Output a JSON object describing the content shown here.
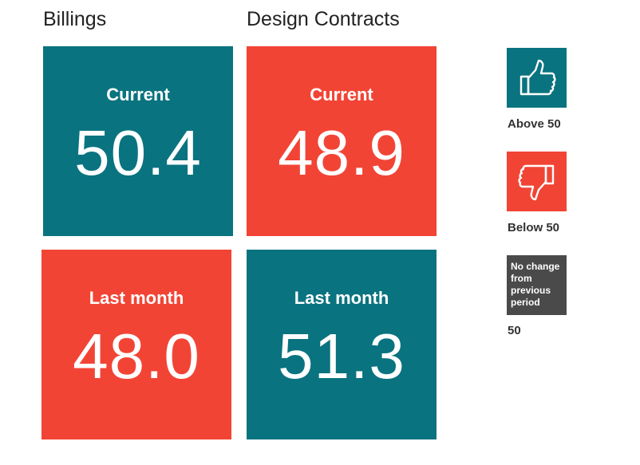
{
  "colors": {
    "above": "#0a7380",
    "below": "#f24435",
    "neutral": "#4a4a4a"
  },
  "columns": [
    {
      "title": "Billings"
    },
    {
      "title": "Design Contracts"
    }
  ],
  "tiles": {
    "billings_current": {
      "label": "Current",
      "value": "50.4",
      "status": "above"
    },
    "design_current": {
      "label": "Current",
      "value": "48.9",
      "status": "below"
    },
    "billings_last": {
      "label": "Last month",
      "value": "48.0",
      "status": "below"
    },
    "design_last": {
      "label": "Last month",
      "value": "51.3",
      "status": "above"
    }
  },
  "legend": {
    "above": {
      "icon": "thumbs-up-icon",
      "label": "Above 50"
    },
    "below": {
      "icon": "thumbs-down-icon",
      "label": "Below 50"
    },
    "no_change": {
      "box_text": "No change from previous period",
      "label": "50"
    }
  }
}
